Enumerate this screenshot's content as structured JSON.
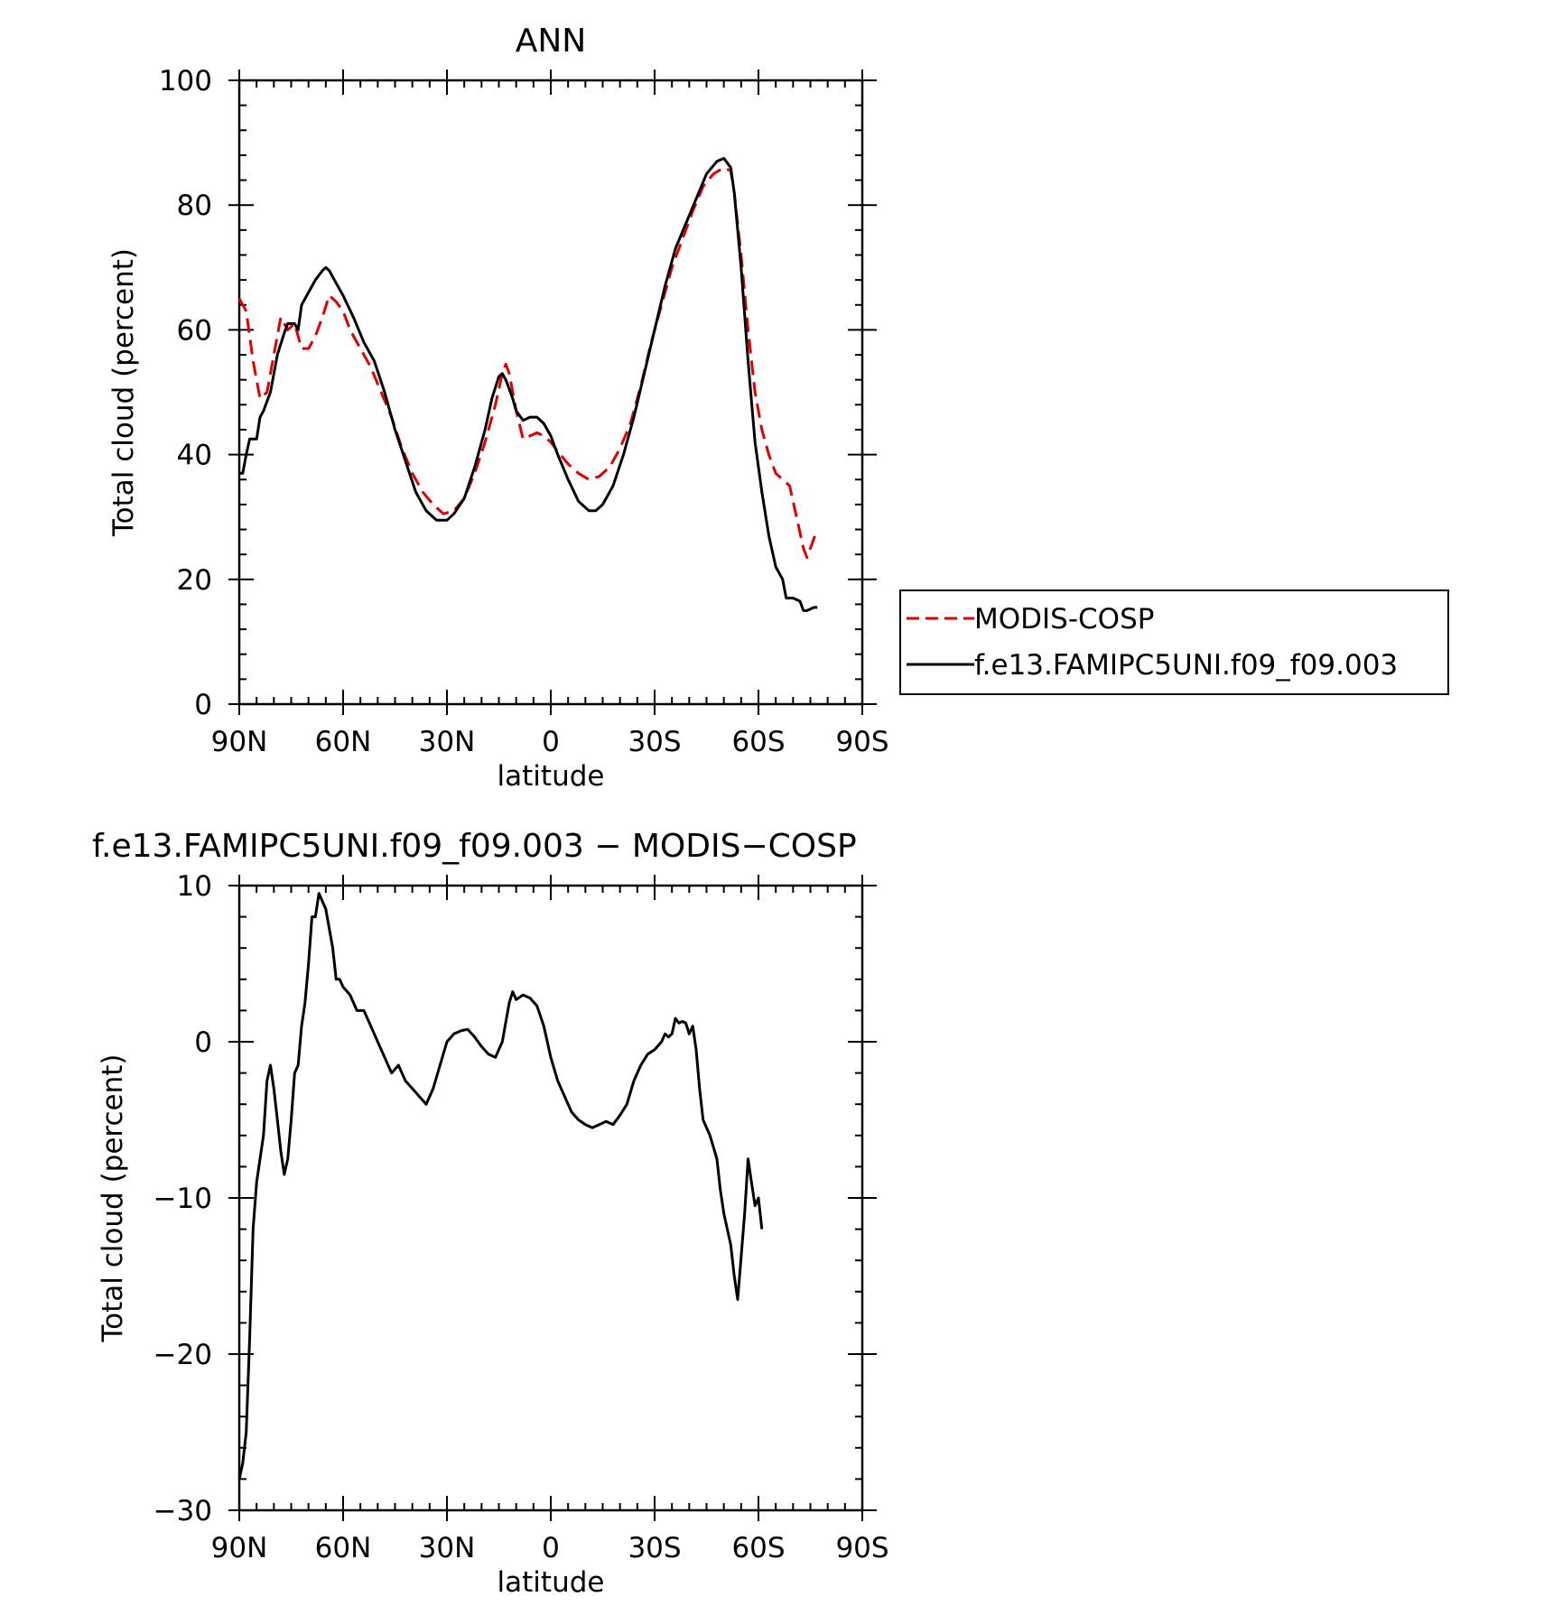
{
  "chart_data": [
    {
      "type": "line",
      "title": "ANN",
      "xlabel": "latitude",
      "ylabel": "Total cloud (percent)",
      "xlim": [
        90,
        -90
      ],
      "ylim": [
        0,
        100
      ],
      "x_ticks": [
        {
          "value": 90,
          "label": "90N"
        },
        {
          "value": 60,
          "label": "60N"
        },
        {
          "value": 30,
          "label": "30N"
        },
        {
          "value": 0,
          "label": "0"
        },
        {
          "value": -30,
          "label": "30S"
        },
        {
          "value": -60,
          "label": "60S"
        },
        {
          "value": -90,
          "label": "90S"
        }
      ],
      "y_ticks": [
        {
          "value": 0,
          "label": "0"
        },
        {
          "value": 20,
          "label": "20"
        },
        {
          "value": 40,
          "label": "40"
        },
        {
          "value": 60,
          "label": "60"
        },
        {
          "value": 80,
          "label": "80"
        },
        {
          "value": 100,
          "label": "100"
        }
      ],
      "legend_position": "right",
      "series": [
        {
          "name": "MODIS-COSP",
          "color": "#e00000",
          "dash": "dashed",
          "points": [
            [
              90,
              65
            ],
            [
              88,
              63
            ],
            [
              86,
              55
            ],
            [
              84,
              49
            ],
            [
              82,
              50
            ],
            [
              80,
              56
            ],
            [
              78,
              62
            ],
            [
              76,
              60
            ],
            [
              74,
              61
            ],
            [
              72,
              57
            ],
            [
              70,
              57
            ],
            [
              68,
              59
            ],
            [
              66,
              62
            ],
            [
              64,
              65.5
            ],
            [
              62,
              64.5
            ],
            [
              60,
              63
            ],
            [
              58,
              60
            ],
            [
              55,
              57
            ],
            [
              52,
              54
            ],
            [
              49,
              50
            ],
            [
              46,
              46
            ],
            [
              43,
              41
            ],
            [
              40,
              37
            ],
            [
              37,
              34
            ],
            [
              34,
              32
            ],
            [
              31,
              30.5
            ],
            [
              28,
              31
            ],
            [
              25,
              33
            ],
            [
              22,
              37
            ],
            [
              19,
              42
            ],
            [
              16,
              48
            ],
            [
              14,
              53
            ],
            [
              13,
              54.5
            ],
            [
              12,
              53
            ],
            [
              10,
              47
            ],
            [
              8,
              42.5
            ],
            [
              6,
              43
            ],
            [
              4,
              43.5
            ],
            [
              2,
              43
            ],
            [
              0,
              42
            ],
            [
              -2,
              40.5
            ],
            [
              -5,
              38.5
            ],
            [
              -8,
              37
            ],
            [
              -11,
              36
            ],
            [
              -14,
              36.5
            ],
            [
              -17,
              38
            ],
            [
              -20,
              41
            ],
            [
              -23,
              45
            ],
            [
              -26,
              51
            ],
            [
              -29,
              58
            ],
            [
              -32,
              64
            ],
            [
              -35,
              70
            ],
            [
              -38,
              74.5
            ],
            [
              -41,
              79
            ],
            [
              -44,
              83
            ],
            [
              -47,
              85
            ],
            [
              -50,
              86
            ],
            [
              -52,
              85.5
            ],
            [
              -53,
              82
            ],
            [
              -55,
              72
            ],
            [
              -57,
              60
            ],
            [
              -59,
              50
            ],
            [
              -61,
              44
            ],
            [
              -63,
              40
            ],
            [
              -65,
              37
            ],
            [
              -67,
              36
            ],
            [
              -69,
              35
            ],
            [
              -71,
              30
            ],
            [
              -73,
              25
            ],
            [
              -74,
              23.5
            ],
            [
              -75,
              25
            ],
            [
              -76,
              26.5
            ],
            [
              -77,
              28
            ]
          ]
        },
        {
          "name": "f.e13.FAMIPC5UNI.f09_f09.003",
          "color": "#000000",
          "dash": "solid",
          "points": [
            [
              90,
              37
            ],
            [
              89,
              37
            ],
            [
              88,
              40
            ],
            [
              87,
              42.5
            ],
            [
              85,
              42.5
            ],
            [
              84,
              46
            ],
            [
              83,
              47
            ],
            [
              81,
              50
            ],
            [
              79,
              56
            ],
            [
              77,
              59.5
            ],
            [
              76,
              61
            ],
            [
              74,
              61
            ],
            [
              73,
              60
            ],
            [
              72,
              64
            ],
            [
              70,
              66
            ],
            [
              68,
              68
            ],
            [
              66,
              69.5
            ],
            [
              65,
              70
            ],
            [
              64,
              69.5
            ],
            [
              62,
              67.5
            ],
            [
              60,
              65.5
            ],
            [
              57,
              62
            ],
            [
              54,
              58
            ],
            [
              51,
              55
            ],
            [
              48,
              50
            ],
            [
              45,
              44
            ],
            [
              42,
              39
            ],
            [
              39,
              34
            ],
            [
              36,
              31
            ],
            [
              33,
              29.5
            ],
            [
              30,
              29.5
            ],
            [
              28,
              30.5
            ],
            [
              25,
              33
            ],
            [
              22,
              38
            ],
            [
              19,
              44
            ],
            [
              17,
              49
            ],
            [
              15,
              52.5
            ],
            [
              14,
              53
            ],
            [
              13,
              52
            ],
            [
              11,
              49
            ],
            [
              10,
              47
            ],
            [
              8,
              45.5
            ],
            [
              6,
              46
            ],
            [
              4,
              46
            ],
            [
              2,
              45
            ],
            [
              0,
              43
            ],
            [
              -2,
              40
            ],
            [
              -5,
              36
            ],
            [
              -8,
              32.5
            ],
            [
              -11,
              31
            ],
            [
              -13,
              31
            ],
            [
              -15,
              32
            ],
            [
              -18,
              35
            ],
            [
              -21,
              40
            ],
            [
              -24,
              46
            ],
            [
              -27,
              53
            ],
            [
              -30,
              60
            ],
            [
              -33,
              67
            ],
            [
              -36,
              73
            ],
            [
              -39,
              77
            ],
            [
              -42,
              81
            ],
            [
              -45,
              85
            ],
            [
              -48,
              87
            ],
            [
              -50,
              87.5
            ],
            [
              -52,
              86
            ],
            [
              -53,
              82
            ],
            [
              -55,
              70
            ],
            [
              -57,
              55
            ],
            [
              -59,
              42
            ],
            [
              -61,
              34
            ],
            [
              -63,
              27
            ],
            [
              -65,
              22
            ],
            [
              -67,
              20
            ],
            [
              -68,
              17
            ],
            [
              -70,
              17
            ],
            [
              -72,
              16.5
            ],
            [
              -73,
              15
            ],
            [
              -74,
              15
            ],
            [
              -76,
              15.5
            ],
            [
              -77,
              15.5
            ]
          ]
        }
      ]
    },
    {
      "type": "line",
      "title": "f.e13.FAMIPC5UNI.f09_f09.003 − MODIS−COSP",
      "xlabel": "latitude",
      "ylabel": "Total cloud (percent)",
      "xlim": [
        90,
        -90
      ],
      "ylim": [
        -30,
        10
      ],
      "x_ticks": [
        {
          "value": 90,
          "label": "90N"
        },
        {
          "value": 60,
          "label": "60N"
        },
        {
          "value": 30,
          "label": "30N"
        },
        {
          "value": 0,
          "label": "0"
        },
        {
          "value": -30,
          "label": "30S"
        },
        {
          "value": -60,
          "label": "60S"
        },
        {
          "value": -90,
          "label": "90S"
        }
      ],
      "y_ticks": [
        {
          "value": -30,
          "label": "−30"
        },
        {
          "value": -20,
          "label": "−20"
        },
        {
          "value": -10,
          "label": "−10"
        },
        {
          "value": 0,
          "label": "0"
        },
        {
          "value": 10,
          "label": "10"
        }
      ],
      "series": [
        {
          "color": "#000000",
          "dash": "solid",
          "points": [
            [
              90,
              -28
            ],
            [
              89,
              -27
            ],
            [
              88,
              -25
            ],
            [
              87,
              -19
            ],
            [
              86,
              -12
            ],
            [
              85,
              -9
            ],
            [
              83,
              -6
            ],
            [
              82,
              -2.5
            ],
            [
              81,
              -1.5
            ],
            [
              80,
              -3
            ],
            [
              79,
              -5
            ],
            [
              78,
              -7
            ],
            [
              77,
              -8.5
            ],
            [
              76,
              -7.5
            ],
            [
              75,
              -5
            ],
            [
              74,
              -2
            ],
            [
              73,
              -1.5
            ],
            [
              72,
              1
            ],
            [
              71,
              2.5
            ],
            [
              70,
              5
            ],
            [
              69,
              8
            ],
            [
              68,
              8
            ],
            [
              67,
              9.5
            ],
            [
              66,
              9
            ],
            [
              65,
              8.5
            ],
            [
              63,
              6
            ],
            [
              62,
              4
            ],
            [
              61,
              4
            ],
            [
              60,
              3.5
            ],
            [
              58,
              3
            ],
            [
              56,
              2
            ],
            [
              54,
              2
            ],
            [
              52,
              1
            ],
            [
              50,
              0
            ],
            [
              48,
              -1
            ],
            [
              46,
              -2
            ],
            [
              44,
              -1.5
            ],
            [
              42,
              -2.5
            ],
            [
              40,
              -3
            ],
            [
              38,
              -3.5
            ],
            [
              36,
              -4
            ],
            [
              34,
              -3
            ],
            [
              32,
              -1.5
            ],
            [
              30,
              0
            ],
            [
              28,
              0.5
            ],
            [
              26,
              0.7
            ],
            [
              24,
              0.8
            ],
            [
              22,
              0.3
            ],
            [
              20,
              -0.3
            ],
            [
              18,
              -0.8
            ],
            [
              16,
              -1
            ],
            [
              14,
              0
            ],
            [
              12,
              2.5
            ],
            [
              11,
              3.2
            ],
            [
              10,
              2.7
            ],
            [
              8,
              3
            ],
            [
              6,
              2.8
            ],
            [
              4,
              2.3
            ],
            [
              2,
              1
            ],
            [
              0,
              -1
            ],
            [
              -2,
              -2.5
            ],
            [
              -4,
              -3.5
            ],
            [
              -6,
              -4.5
            ],
            [
              -8,
              -5
            ],
            [
              -10,
              -5.3
            ],
            [
              -12,
              -5.5
            ],
            [
              -14,
              -5.3
            ],
            [
              -16,
              -5.1
            ],
            [
              -18,
              -5.3
            ],
            [
              -20,
              -4.7
            ],
            [
              -22,
              -4
            ],
            [
              -24,
              -2.5
            ],
            [
              -26,
              -1.5
            ],
            [
              -28,
              -0.8
            ],
            [
              -30,
              -0.5
            ],
            [
              -32,
              0
            ],
            [
              -33,
              0.5
            ],
            [
              -34,
              0.3
            ],
            [
              -35,
              0.5
            ],
            [
              -36,
              1.5
            ],
            [
              -37,
              1.2
            ],
            [
              -38,
              1.3
            ],
            [
              -39,
              1.2
            ],
            [
              -40,
              0.5
            ],
            [
              -41,
              1
            ],
            [
              -42,
              -0.5
            ],
            [
              -43,
              -3
            ],
            [
              -44,
              -5
            ],
            [
              -45,
              -5.5
            ],
            [
              -46,
              -6
            ],
            [
              -48,
              -7.5
            ],
            [
              -49,
              -9.5
            ],
            [
              -50,
              -11
            ],
            [
              -52,
              -13
            ],
            [
              -53,
              -15
            ],
            [
              -54,
              -16.5
            ],
            [
              -56,
              -11
            ],
            [
              -57,
              -7.5
            ],
            [
              -58,
              -9
            ],
            [
              -59,
              -10.5
            ],
            [
              -60,
              -10
            ],
            [
              -61,
              -12
            ]
          ]
        }
      ]
    }
  ]
}
